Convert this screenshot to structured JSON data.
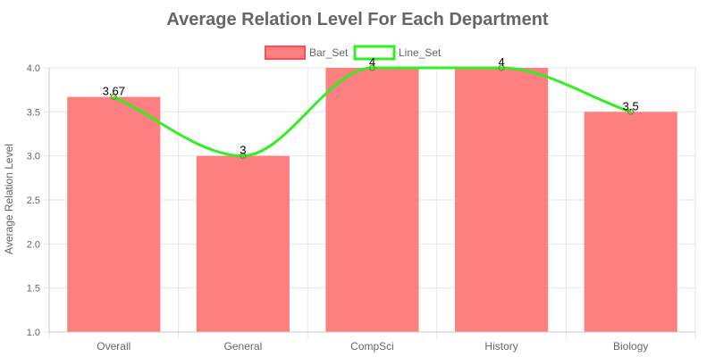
{
  "chart_data": {
    "type": "bar",
    "title": "Average Relation Level For Each Department",
    "xlabel": "",
    "ylabel": "Average Relation Level",
    "categories": [
      "Overall",
      "General",
      "CompSci",
      "History",
      "Biology"
    ],
    "series": [
      {
        "name": "Bar_Set",
        "type": "bar",
        "values": [
          3.67,
          3,
          4,
          4,
          3.5
        ],
        "labels": [
          "3.67",
          "3",
          "4",
          "4",
          "3.5"
        ],
        "color": "#ff6b6b",
        "fill": "#fd7f7f",
        "border": "#ff4d4d"
      },
      {
        "name": "Line_Set",
        "type": "line",
        "values": [
          3.67,
          3,
          4,
          4,
          3.5
        ],
        "color": "#33ee22"
      }
    ],
    "ylim": [
      1.0,
      4.0
    ],
    "yticks": [
      "1.0",
      "1.5",
      "2.0",
      "2.5",
      "3.0",
      "3.5",
      "4.0"
    ],
    "legend_position": "top",
    "grid": true
  }
}
